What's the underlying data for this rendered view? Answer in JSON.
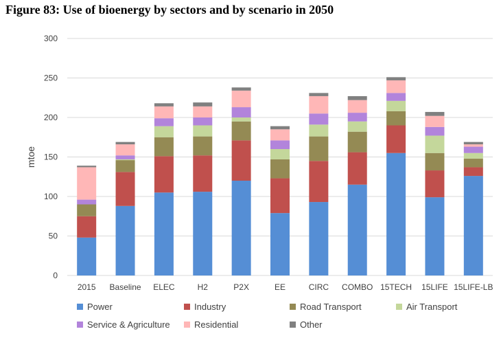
{
  "title": "Figure 83: Use of bioenergy by sectors and by scenario in 2050",
  "chart_data": {
    "type": "bar",
    "stacked": true,
    "title": "Figure 83: Use of bioenergy by sectors and by scenario in 2050",
    "xlabel": "",
    "ylabel": "mtoe",
    "ylim": [
      0,
      300
    ],
    "yticks": [
      0,
      50,
      100,
      150,
      200,
      250,
      300
    ],
    "grid": true,
    "legend_position": "bottom",
    "categories": [
      "2015",
      "Baseline",
      "ELEC",
      "H2",
      "P2X",
      "EE",
      "CIRC",
      "COMBO",
      "15TECH",
      "15LIFE",
      "15LIFE-LB"
    ],
    "series": [
      {
        "name": "Power",
        "color": "#558ED5",
        "values": [
          48,
          88,
          105,
          106,
          120,
          79,
          93,
          115,
          155,
          99,
          126
        ]
      },
      {
        "name": "Industry",
        "color": "#C0504D",
        "values": [
          27,
          43,
          46,
          46,
          51,
          44,
          52,
          41,
          35,
          34,
          11
        ]
      },
      {
        "name": "Road Transport",
        "color": "#948A54",
        "values": [
          15,
          15,
          24,
          24,
          24,
          24,
          31,
          26,
          18,
          22,
          11
        ]
      },
      {
        "name": "Air Transport",
        "color": "#C4D79B",
        "values": [
          0,
          1,
          14,
          14,
          5,
          13,
          15,
          13,
          13,
          22,
          7
        ]
      },
      {
        "name": "Service & Agriculture",
        "color": "#B284DB",
        "values": [
          6,
          5,
          10,
          10,
          13,
          11,
          14,
          11,
          10,
          11,
          8
        ]
      },
      {
        "name": "Residential",
        "color": "#FFB7B7",
        "values": [
          41,
          14,
          15,
          14,
          21,
          14,
          22,
          16,
          16,
          14,
          3
        ]
      },
      {
        "name": "Other",
        "color": "#808080",
        "values": [
          2,
          3,
          4,
          5,
          4,
          4,
          4,
          5,
          4,
          5,
          3
        ]
      }
    ]
  }
}
